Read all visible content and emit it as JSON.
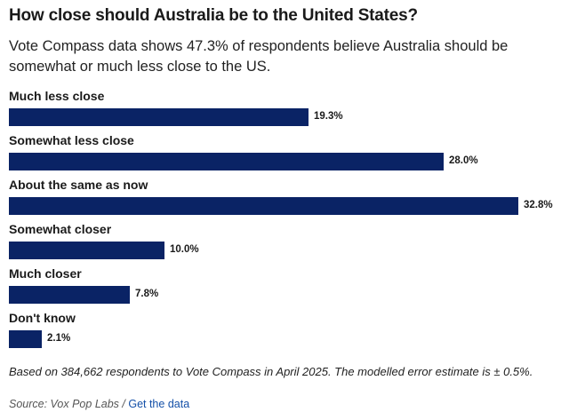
{
  "header": {
    "title": "How close should Australia be to the United States?",
    "subtitle": "Vote Compass data shows 47.3% of respondents believe Australia should be somewhat or much less close to the US."
  },
  "chart_data": {
    "type": "bar",
    "orientation": "horizontal",
    "categories": [
      "Much less close",
      "Somewhat less close",
      "About the same as now",
      "Somewhat closer",
      "Much closer",
      "Don't know"
    ],
    "values": [
      19.3,
      28.0,
      32.8,
      10.0,
      7.8,
      2.1
    ],
    "value_labels": [
      "19.3%",
      "28.0%",
      "32.8%",
      "10.0%",
      "7.8%",
      "2.1%"
    ],
    "unit": "%",
    "xlim": [
      0,
      32.8
    ],
    "grid": false,
    "bar_color": "#0a2365"
  },
  "footer": {
    "note": "Based on 384,662 respondents to Vote Compass in April 2025. The modelled error estimate is ± 0.5%.",
    "source_prefix": "Source: Vox Pop Labs / ",
    "link_label": "Get the data",
    "link_color": "#1450a8"
  }
}
